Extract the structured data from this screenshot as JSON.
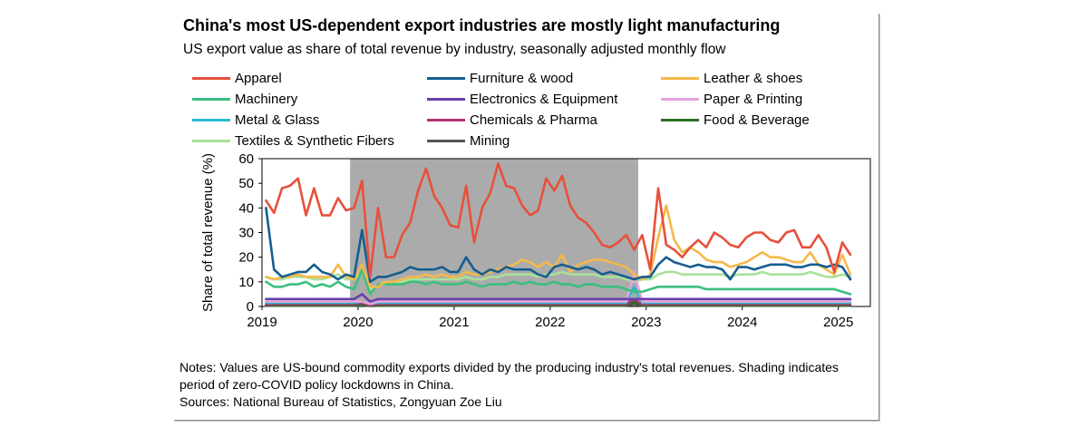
{
  "chart_data": {
    "type": "line",
    "title": "China's most US-dependent export industries are mostly light manufacturing",
    "subtitle": "US export value as share of total revenue by industry, seasonally adjusted monthly flow",
    "ylabel": "Share of total revenue (%)",
    "xlabel": "",
    "ylim": [
      0,
      60
    ],
    "yticks": [
      0,
      10,
      20,
      30,
      40,
      50,
      60
    ],
    "x_start": "2019-01",
    "x_end": "2025-04",
    "x_tick_labels": [
      "2019",
      "2020",
      "2021",
      "2022",
      "2023",
      "2024",
      "2025"
    ],
    "grid": false,
    "legend_position": "top",
    "shaded_period": {
      "start": "2019-12",
      "end": "2022-11",
      "color": "#a6a6a6"
    },
    "series": [
      {
        "name": "Apparel",
        "color": "#e8503a",
        "values": [
          43,
          38,
          48,
          49,
          52,
          37,
          48,
          37,
          37,
          44,
          39,
          40,
          51,
          12,
          40,
          20,
          20,
          29,
          34,
          47,
          56,
          45,
          40,
          33,
          32,
          49,
          26,
          40,
          46,
          58,
          49,
          48,
          41,
          37,
          39,
          52,
          47,
          53,
          41,
          36,
          34,
          30,
          25,
          24,
          26,
          29,
          23,
          29,
          15,
          48,
          25,
          23,
          20,
          24,
          27,
          24,
          30,
          28,
          25,
          24,
          28,
          30,
          30,
          27,
          26,
          30,
          31,
          24,
          24,
          29,
          24,
          14,
          26,
          21
        ]
      },
      {
        "name": "Furniture & wood",
        "color": "#155e8f",
        "values": [
          40,
          15,
          12,
          13,
          14,
          14,
          17,
          14,
          13,
          11,
          13,
          12,
          31,
          10,
          12,
          12,
          13,
          14,
          16,
          15,
          15,
          15,
          16,
          14,
          14,
          20,
          15,
          13,
          15,
          14,
          16,
          15,
          15,
          15,
          13,
          12,
          16,
          17,
          16,
          15,
          16,
          15,
          13,
          14,
          13,
          12,
          11,
          12,
          12,
          17,
          20,
          18,
          17,
          16,
          17,
          16,
          16,
          15,
          11,
          16,
          16,
          15,
          16,
          17,
          17,
          17,
          16,
          16,
          17,
          17,
          16,
          17,
          16,
          11
        ]
      },
      {
        "name": "Leather & shoes",
        "color": "#f5b84a",
        "values": [
          12,
          11,
          12,
          12,
          13,
          12,
          12,
          12,
          12,
          17,
          12,
          11,
          17,
          8,
          8,
          10,
          10,
          11,
          12,
          12,
          13,
          12,
          13,
          12,
          12,
          14,
          13,
          13,
          14,
          15,
          16,
          17,
          19,
          18,
          16,
          18,
          16,
          21,
          14,
          17,
          18,
          19,
          19,
          18,
          17,
          16,
          13,
          11,
          13,
          28,
          41,
          27,
          22,
          24,
          22,
          19,
          18,
          18,
          16,
          17,
          18,
          20,
          22,
          20,
          20,
          19,
          18,
          18,
          22,
          17,
          15,
          13,
          21,
          13
        ]
      },
      {
        "name": "Machinery",
        "color": "#3bbf7f",
        "values": [
          10,
          8,
          8,
          9,
          9,
          10,
          8,
          9,
          8,
          10,
          8,
          7,
          15,
          5,
          9,
          9,
          9,
          9,
          10,
          10,
          9,
          10,
          9,
          9,
          9,
          10,
          9,
          8,
          9,
          9,
          9,
          10,
          9,
          10,
          9,
          9,
          10,
          9,
          9,
          8,
          9,
          9,
          8,
          8,
          8,
          7,
          6,
          6,
          7,
          8,
          8,
          8,
          8,
          8,
          8,
          7,
          7,
          7,
          7,
          7,
          7,
          7,
          7,
          7,
          7,
          7,
          7,
          7,
          7,
          7,
          7,
          7,
          6,
          5
        ]
      },
      {
        "name": "Electronics & Equipment",
        "color": "#6a3fae",
        "values": [
          3,
          3,
          3,
          3,
          3,
          3,
          3,
          3,
          3,
          3,
          3,
          3,
          5,
          2,
          3,
          3,
          3,
          3,
          3,
          3,
          3,
          3,
          3,
          3,
          3,
          3,
          3,
          3,
          3,
          3,
          3,
          3,
          3,
          3,
          3,
          3,
          3,
          3,
          3,
          3,
          3,
          3,
          3,
          3,
          3,
          3,
          3,
          3,
          3,
          3,
          3,
          3,
          3,
          3,
          3,
          3,
          3,
          3,
          3,
          3,
          3,
          3,
          3,
          3,
          3,
          3,
          3,
          3,
          3,
          3,
          3,
          3,
          3,
          3
        ]
      },
      {
        "name": "Paper & Printing",
        "color": "#e4a3dc",
        "values": [
          2,
          2,
          2,
          2,
          2,
          2,
          2,
          2,
          2,
          2,
          2,
          2,
          2,
          1,
          2,
          2,
          2,
          2,
          2,
          2,
          2,
          2,
          2,
          2,
          2,
          2,
          2,
          2,
          2,
          2,
          2,
          2,
          2,
          2,
          2,
          2,
          2,
          2,
          2,
          2,
          2,
          2,
          2,
          2,
          2,
          2,
          14,
          2,
          2,
          2,
          2,
          2,
          2,
          2,
          2,
          2,
          2,
          2,
          2,
          2,
          2,
          2,
          2,
          2,
          2,
          2,
          2,
          2,
          2,
          2,
          2,
          2,
          2,
          2
        ]
      },
      {
        "name": "Metal & Glass",
        "color": "#2bbad1",
        "values": [
          1.5,
          1.5,
          1.5,
          1.5,
          1.5,
          1.5,
          1.5,
          1.5,
          1.5,
          1.5,
          1.5,
          1.5,
          2,
          1,
          1.5,
          1.5,
          1.5,
          1.5,
          1.5,
          1.5,
          1.5,
          1.5,
          1.5,
          1.5,
          1.5,
          1.5,
          1.5,
          1.5,
          1.5,
          1.5,
          1.5,
          1.5,
          1.5,
          1.5,
          1.5,
          1.5,
          1.5,
          1.5,
          1.5,
          1.5,
          1.5,
          1.5,
          1.5,
          1.5,
          1.5,
          1.5,
          8,
          1.5,
          1.5,
          1.5,
          1.5,
          1.5,
          1.5,
          1.5,
          1.5,
          1.5,
          1.5,
          1.5,
          1.5,
          1.5,
          1.5,
          1.5,
          1.5,
          1.5,
          1.5,
          1.5,
          1.5,
          1.5,
          1.5,
          1.5,
          1.5,
          1.5,
          1.5,
          1.5
        ]
      },
      {
        "name": "Chemicals & Pharma",
        "color": "#b53270",
        "values": [
          1,
          1,
          1,
          1,
          1,
          1,
          1,
          1,
          1,
          1,
          1,
          1,
          1.5,
          0.5,
          1,
          1,
          1,
          1,
          1,
          1,
          1,
          1,
          1,
          1,
          1,
          1,
          1,
          1,
          1,
          1,
          1,
          1,
          1,
          1,
          1,
          1,
          1,
          1,
          1,
          1,
          1,
          1,
          1,
          1,
          1,
          1,
          3,
          1,
          1,
          1,
          1,
          1,
          1,
          1,
          1,
          1,
          1,
          1,
          1,
          1,
          1,
          1,
          1,
          1,
          1,
          1,
          1,
          1,
          1,
          1,
          1,
          1,
          1,
          1
        ]
      },
      {
        "name": "Food & Beverage",
        "color": "#2b6e27",
        "values": [
          0.5,
          0.5,
          0.5,
          0.5,
          0.5,
          0.5,
          0.5,
          0.5,
          0.5,
          0.5,
          0.5,
          0.5,
          0.8,
          0.3,
          0.5,
          0.5,
          0.5,
          0.5,
          0.5,
          0.5,
          0.5,
          0.5,
          0.5,
          0.5,
          0.5,
          0.5,
          0.5,
          0.5,
          0.5,
          0.5,
          0.5,
          0.5,
          0.5,
          0.5,
          0.5,
          0.5,
          0.5,
          0.5,
          0.5,
          0.5,
          0.5,
          0.5,
          0.5,
          0.5,
          0.5,
          0.5,
          2,
          0.5,
          0.5,
          0.5,
          0.5,
          0.5,
          0.5,
          0.5,
          0.5,
          0.5,
          0.5,
          0.5,
          0.5,
          0.5,
          0.5,
          0.5,
          0.5,
          0.5,
          0.5,
          0.5,
          0.5,
          0.5,
          0.5,
          0.5,
          0.5,
          0.5,
          0.5,
          0.5
        ]
      },
      {
        "name": "Textiles & Synthetic Fibers",
        "color": "#a9e19a",
        "values": [
          12,
          11,
          11,
          12,
          12,
          12,
          11,
          11,
          12,
          13,
          11,
          11,
          14,
          7,
          9,
          10,
          10,
          10,
          11,
          11,
          11,
          11,
          11,
          11,
          11,
          12,
          11,
          11,
          12,
          12,
          13,
          13,
          13,
          13,
          12,
          13,
          13,
          14,
          13,
          13,
          13,
          13,
          12,
          12,
          12,
          11,
          10,
          11,
          11,
          13,
          14,
          14,
          13,
          13,
          13,
          13,
          13,
          13,
          12,
          13,
          13,
          13,
          14,
          13,
          13,
          13,
          13,
          13,
          14,
          13,
          12,
          12,
          13,
          12
        ]
      },
      {
        "name": "Mining",
        "color": "#555555",
        "values": [
          0.3,
          0.3,
          0.3,
          0.3,
          0.3,
          0.3,
          0.3,
          0.3,
          0.3,
          0.3,
          0.3,
          0.3,
          0.5,
          0.2,
          0.3,
          0.3,
          0.3,
          0.3,
          0.3,
          0.3,
          0.3,
          0.3,
          0.3,
          0.3,
          0.3,
          0.3,
          0.3,
          0.3,
          0.3,
          0.3,
          0.3,
          0.3,
          0.3,
          0.3,
          0.3,
          0.3,
          0.3,
          0.3,
          0.3,
          0.3,
          0.3,
          0.3,
          0.3,
          0.3,
          0.3,
          0.3,
          1,
          0.3,
          0.3,
          0.3,
          0.3,
          0.3,
          0.3,
          0.3,
          0.3,
          0.3,
          0.3,
          0.3,
          0.3,
          0.3,
          0.3,
          0.3,
          0.3,
          0.3,
          0.3,
          0.3,
          0.3,
          0.3,
          0.3,
          0.3,
          0.3,
          0.3,
          0.3,
          0.3
        ]
      }
    ]
  },
  "notes": {
    "line1": "Notes: Values are US-bound commodity exports divided by the producing industry's total revenues. Shading indicates",
    "line2": "period of zero-COVID policy lockdowns in China.",
    "sources": "Sources: National Bureau of Statistics, Zongyuan Zoe Liu"
  }
}
